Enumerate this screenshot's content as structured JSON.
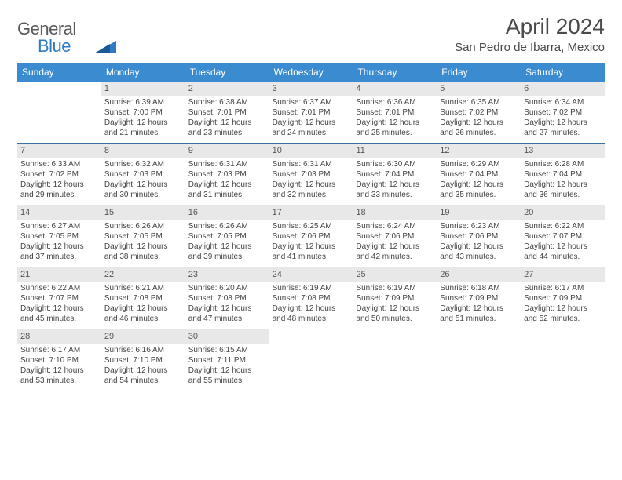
{
  "logo": {
    "general": "General",
    "blue": "Blue"
  },
  "title": "April 2024",
  "location": "San Pedro de Ibarra, Mexico",
  "header_bg": "#3b8bd0",
  "header_fg": "#ffffff",
  "border_color": "#3b6fa3",
  "daynum_bg": "#e8e8e8",
  "text_color": "#444444",
  "weekdays": [
    "Sunday",
    "Monday",
    "Tuesday",
    "Wednesday",
    "Thursday",
    "Friday",
    "Saturday"
  ],
  "weeks": [
    [
      {
        "n": "",
        "lines": []
      },
      {
        "n": "1",
        "lines": [
          "Sunrise: 6:39 AM",
          "Sunset: 7:00 PM",
          "Daylight: 12 hours",
          "and 21 minutes."
        ]
      },
      {
        "n": "2",
        "lines": [
          "Sunrise: 6:38 AM",
          "Sunset: 7:01 PM",
          "Daylight: 12 hours",
          "and 23 minutes."
        ]
      },
      {
        "n": "3",
        "lines": [
          "Sunrise: 6:37 AM",
          "Sunset: 7:01 PM",
          "Daylight: 12 hours",
          "and 24 minutes."
        ]
      },
      {
        "n": "4",
        "lines": [
          "Sunrise: 6:36 AM",
          "Sunset: 7:01 PM",
          "Daylight: 12 hours",
          "and 25 minutes."
        ]
      },
      {
        "n": "5",
        "lines": [
          "Sunrise: 6:35 AM",
          "Sunset: 7:02 PM",
          "Daylight: 12 hours",
          "and 26 minutes."
        ]
      },
      {
        "n": "6",
        "lines": [
          "Sunrise: 6:34 AM",
          "Sunset: 7:02 PM",
          "Daylight: 12 hours",
          "and 27 minutes."
        ]
      }
    ],
    [
      {
        "n": "7",
        "lines": [
          "Sunrise: 6:33 AM",
          "Sunset: 7:02 PM",
          "Daylight: 12 hours",
          "and 29 minutes."
        ]
      },
      {
        "n": "8",
        "lines": [
          "Sunrise: 6:32 AM",
          "Sunset: 7:03 PM",
          "Daylight: 12 hours",
          "and 30 minutes."
        ]
      },
      {
        "n": "9",
        "lines": [
          "Sunrise: 6:31 AM",
          "Sunset: 7:03 PM",
          "Daylight: 12 hours",
          "and 31 minutes."
        ]
      },
      {
        "n": "10",
        "lines": [
          "Sunrise: 6:31 AM",
          "Sunset: 7:03 PM",
          "Daylight: 12 hours",
          "and 32 minutes."
        ]
      },
      {
        "n": "11",
        "lines": [
          "Sunrise: 6:30 AM",
          "Sunset: 7:04 PM",
          "Daylight: 12 hours",
          "and 33 minutes."
        ]
      },
      {
        "n": "12",
        "lines": [
          "Sunrise: 6:29 AM",
          "Sunset: 7:04 PM",
          "Daylight: 12 hours",
          "and 35 minutes."
        ]
      },
      {
        "n": "13",
        "lines": [
          "Sunrise: 6:28 AM",
          "Sunset: 7:04 PM",
          "Daylight: 12 hours",
          "and 36 minutes."
        ]
      }
    ],
    [
      {
        "n": "14",
        "lines": [
          "Sunrise: 6:27 AM",
          "Sunset: 7:05 PM",
          "Daylight: 12 hours",
          "and 37 minutes."
        ]
      },
      {
        "n": "15",
        "lines": [
          "Sunrise: 6:26 AM",
          "Sunset: 7:05 PM",
          "Daylight: 12 hours",
          "and 38 minutes."
        ]
      },
      {
        "n": "16",
        "lines": [
          "Sunrise: 6:26 AM",
          "Sunset: 7:05 PM",
          "Daylight: 12 hours",
          "and 39 minutes."
        ]
      },
      {
        "n": "17",
        "lines": [
          "Sunrise: 6:25 AM",
          "Sunset: 7:06 PM",
          "Daylight: 12 hours",
          "and 41 minutes."
        ]
      },
      {
        "n": "18",
        "lines": [
          "Sunrise: 6:24 AM",
          "Sunset: 7:06 PM",
          "Daylight: 12 hours",
          "and 42 minutes."
        ]
      },
      {
        "n": "19",
        "lines": [
          "Sunrise: 6:23 AM",
          "Sunset: 7:06 PM",
          "Daylight: 12 hours",
          "and 43 minutes."
        ]
      },
      {
        "n": "20",
        "lines": [
          "Sunrise: 6:22 AM",
          "Sunset: 7:07 PM",
          "Daylight: 12 hours",
          "and 44 minutes."
        ]
      }
    ],
    [
      {
        "n": "21",
        "lines": [
          "Sunrise: 6:22 AM",
          "Sunset: 7:07 PM",
          "Daylight: 12 hours",
          "and 45 minutes."
        ]
      },
      {
        "n": "22",
        "lines": [
          "Sunrise: 6:21 AM",
          "Sunset: 7:08 PM",
          "Daylight: 12 hours",
          "and 46 minutes."
        ]
      },
      {
        "n": "23",
        "lines": [
          "Sunrise: 6:20 AM",
          "Sunset: 7:08 PM",
          "Daylight: 12 hours",
          "and 47 minutes."
        ]
      },
      {
        "n": "24",
        "lines": [
          "Sunrise: 6:19 AM",
          "Sunset: 7:08 PM",
          "Daylight: 12 hours",
          "and 48 minutes."
        ]
      },
      {
        "n": "25",
        "lines": [
          "Sunrise: 6:19 AM",
          "Sunset: 7:09 PM",
          "Daylight: 12 hours",
          "and 50 minutes."
        ]
      },
      {
        "n": "26",
        "lines": [
          "Sunrise: 6:18 AM",
          "Sunset: 7:09 PM",
          "Daylight: 12 hours",
          "and 51 minutes."
        ]
      },
      {
        "n": "27",
        "lines": [
          "Sunrise: 6:17 AM",
          "Sunset: 7:09 PM",
          "Daylight: 12 hours",
          "and 52 minutes."
        ]
      }
    ],
    [
      {
        "n": "28",
        "lines": [
          "Sunrise: 6:17 AM",
          "Sunset: 7:10 PM",
          "Daylight: 12 hours",
          "and 53 minutes."
        ]
      },
      {
        "n": "29",
        "lines": [
          "Sunrise: 6:16 AM",
          "Sunset: 7:10 PM",
          "Daylight: 12 hours",
          "and 54 minutes."
        ]
      },
      {
        "n": "30",
        "lines": [
          "Sunrise: 6:15 AM",
          "Sunset: 7:11 PM",
          "Daylight: 12 hours",
          "and 55 minutes."
        ]
      },
      {
        "n": "",
        "lines": []
      },
      {
        "n": "",
        "lines": []
      },
      {
        "n": "",
        "lines": []
      },
      {
        "n": "",
        "lines": []
      }
    ]
  ]
}
